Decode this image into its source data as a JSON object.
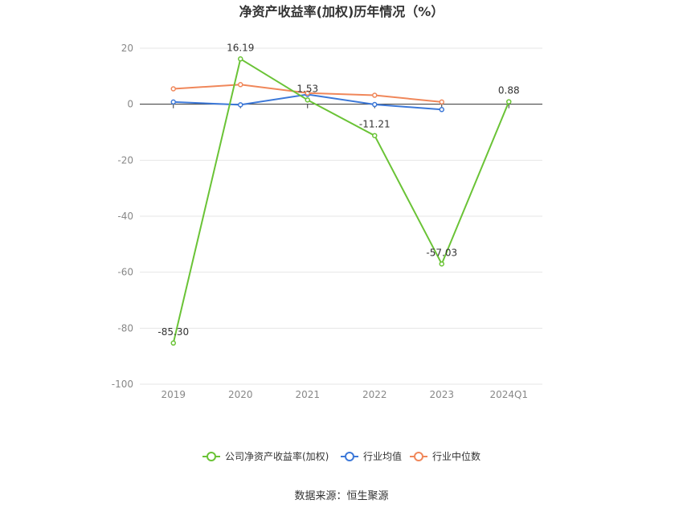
{
  "chart_data": {
    "type": "line",
    "title": "净资产收益率(加权)历年情况（%）",
    "categories": [
      "2019",
      "2020",
      "2021",
      "2022",
      "2023",
      "2024Q1"
    ],
    "yticks": [
      "20",
      "0",
      "-20",
      "-40",
      "-60",
      "-80",
      "-100"
    ],
    "ylim": [
      -100,
      20
    ],
    "grid": true,
    "legend_position": "bottom",
    "series": [
      {
        "name": "公司净资产收益率(加权)",
        "color": "#6ac336",
        "values": [
          -85.3,
          16.19,
          1.53,
          -11.21,
          -57.03,
          0.88
        ],
        "labels": [
          "-85.30",
          "16.19",
          "1.53",
          "-11.21",
          "-57.03",
          "0.88"
        ]
      },
      {
        "name": "行业均值",
        "color": "#3c78d8",
        "values": [
          0.8,
          -0.2,
          3.5,
          -0.1,
          -1.9,
          null
        ]
      },
      {
        "name": "行业中位数",
        "color": "#f0875a",
        "values": [
          5.5,
          7.0,
          4.0,
          3.2,
          0.8,
          null
        ]
      }
    ]
  },
  "source": "数据来源：恒生聚源"
}
